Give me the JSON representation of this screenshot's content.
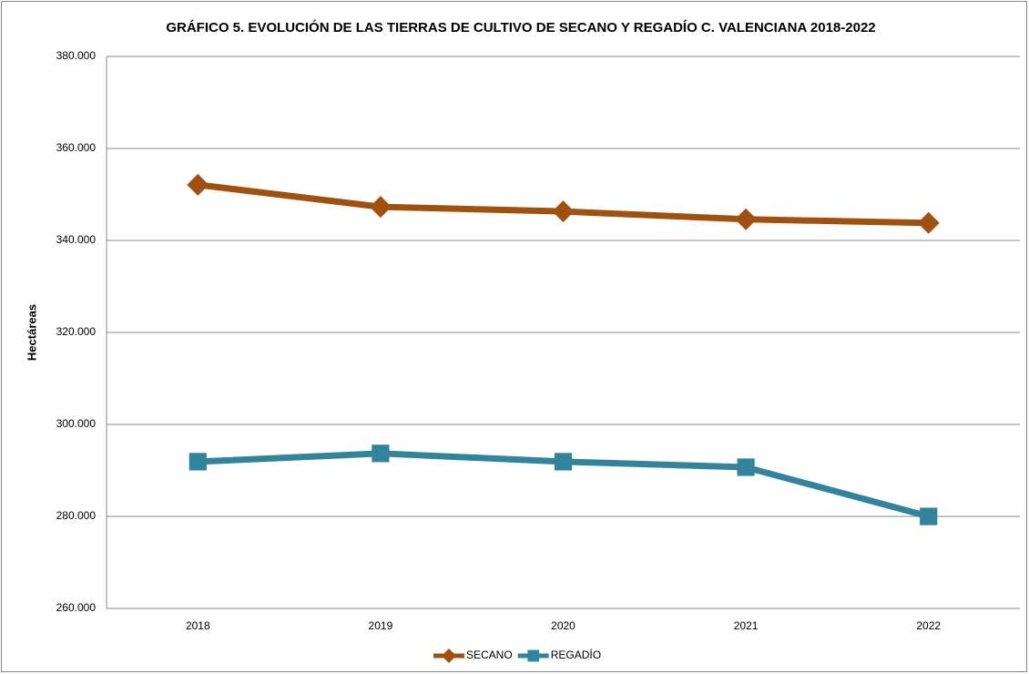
{
  "chart_data": {
    "type": "line",
    "title": "GRÁFICO 5. EVOLUCIÓN DE LAS TIERRAS DE CULTIVO DE SECANO Y REGADÍO C. VALENCIANA 2018-2022",
    "y_label": "Hectáreas",
    "categories": [
      "2018",
      "2019",
      "2020",
      "2021",
      "2022"
    ],
    "series": [
      {
        "name": "SECANO",
        "color": "#a0510f",
        "marker": "diamond",
        "values": [
          352100,
          347300,
          346300,
          344600,
          343800
        ]
      },
      {
        "name": "REGADÍO",
        "color": "#31849b",
        "marker": "square",
        "values": [
          291900,
          293700,
          291900,
          290700,
          280000
        ]
      }
    ],
    "ylim": [
      260000,
      380000
    ],
    "yticks": [
      {
        "value": 260000,
        "label": "260.000"
      },
      {
        "value": 280000,
        "label": "280.000"
      },
      {
        "value": 300000,
        "label": "300.000"
      },
      {
        "value": 320000,
        "label": "320.000"
      },
      {
        "value": 340000,
        "label": "340.000"
      },
      {
        "value": 360000,
        "label": "360.000"
      },
      {
        "value": 380000,
        "label": "380.000"
      }
    ],
    "grid": true,
    "legend": "bottom"
  }
}
